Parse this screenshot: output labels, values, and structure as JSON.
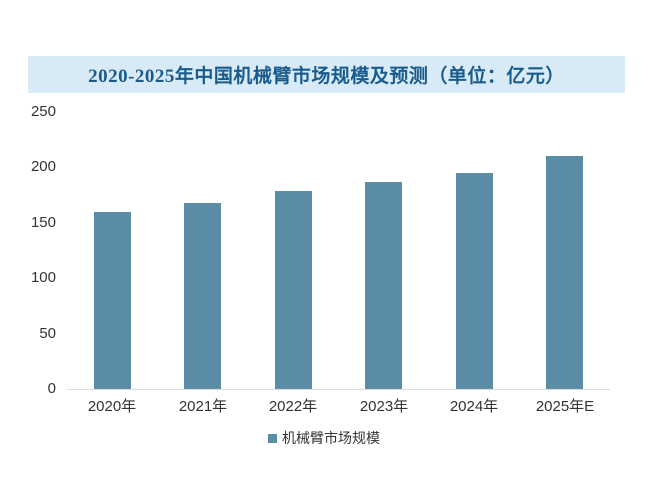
{
  "title": "2020-2025年中国机械臂市场规模及预测（单位：亿元）",
  "colors": {
    "bar": "#5b8ca6",
    "title_band_bg": "#d9eaf7",
    "title_text": "#195c8c",
    "axis_line": "#dcdcdc",
    "label_text": "#333333"
  },
  "legend": {
    "label": "机械臂市场规模"
  },
  "chart_data": {
    "type": "bar",
    "title": "2020-2025年中国机械臂市场规模及预测（单位：亿元）",
    "categories": [
      "2020年",
      "2021年",
      "2022年",
      "2023年",
      "2024年",
      "2025年E"
    ],
    "values": [
      160,
      168,
      179,
      187,
      195,
      210
    ],
    "series_name": "机械臂市场规模",
    "unit": "亿元",
    "xlabel": "",
    "ylabel": "",
    "ylim": [
      0,
      250
    ],
    "y_ticks": [
      250,
      200,
      150,
      100,
      50,
      0
    ],
    "grid": false,
    "legend_position": "bottom"
  }
}
